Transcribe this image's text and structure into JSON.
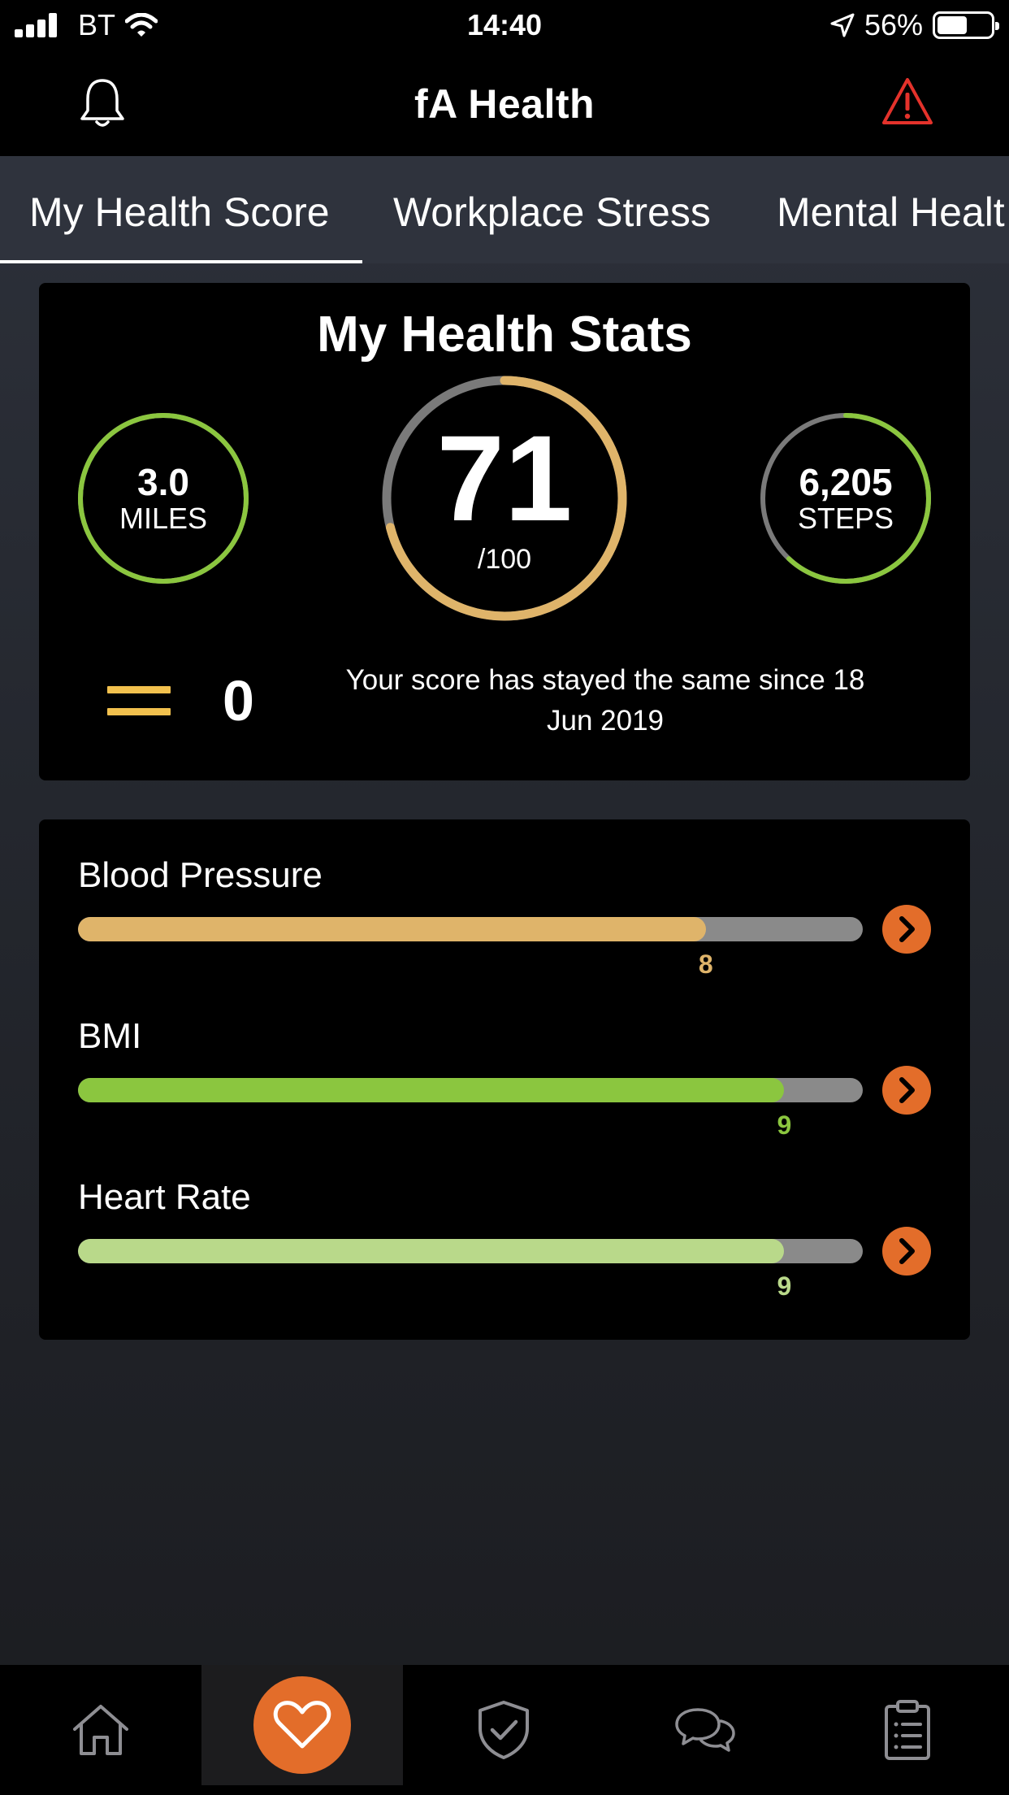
{
  "status_bar": {
    "carrier": "BT",
    "time": "14:40",
    "battery_percent": "56%",
    "battery_level": 0.56
  },
  "nav": {
    "title": "fA Health",
    "left_icon": "bell-icon",
    "right_icon": "warning-triangle-icon"
  },
  "tabs": [
    {
      "label": "My Health Score",
      "active": true
    },
    {
      "label": "Workplace Stress",
      "active": false
    },
    {
      "label": "Mental Healt",
      "active": false
    }
  ],
  "stats_card": {
    "title": "My Health Stats",
    "miles": {
      "value": "3.0",
      "unit": "MILES",
      "progress": 1.0,
      "color": "#8bc63f"
    },
    "score": {
      "value": "71",
      "max": "/100",
      "progress": 0.71,
      "color": "#dfb46a",
      "track_color": "#7a7a7a"
    },
    "steps": {
      "value": "6,205",
      "unit": "STEPS",
      "progress": 0.62,
      "color": "#8bc63f",
      "track_color": "#7a7a7a"
    },
    "trend": {
      "icon": "equals-icon",
      "change": "0",
      "message": "Your score has stayed the same since 18 Jun 2019"
    }
  },
  "metrics": [
    {
      "label": "Blood Pressure",
      "value": "8",
      "fraction": 0.8,
      "color": "#dfb46a"
    },
    {
      "label": "BMI",
      "value": "9",
      "fraction": 0.9,
      "color": "#8bc63f"
    },
    {
      "label": "Heart Rate",
      "value": "9",
      "fraction": 0.9,
      "color": "#b9d98a"
    }
  ],
  "accent_color": "#e36d2a",
  "tab_bar": [
    {
      "icon": "home-icon",
      "active": false
    },
    {
      "icon": "heart-icon",
      "active": true
    },
    {
      "icon": "shield-check-icon",
      "active": false
    },
    {
      "icon": "chat-icon",
      "active": false
    },
    {
      "icon": "clipboard-list-icon",
      "active": false
    }
  ]
}
